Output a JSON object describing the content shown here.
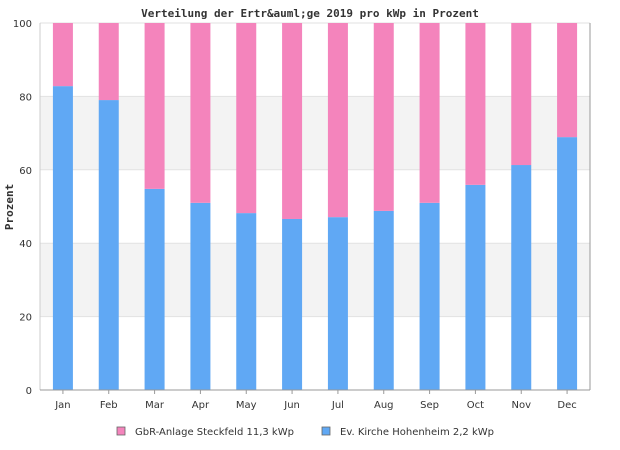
{
  "chart_data": {
    "type": "bar",
    "stacked": true,
    "title": "Verteilung der Ertr&auml;ge 2019 pro kWp in Prozent",
    "xlabel": "",
    "ylabel": "Prozent",
    "ylim": [
      0,
      100
    ],
    "yticks": [
      "0",
      "20",
      "40",
      "60",
      "80",
      "100"
    ],
    "grid": "horizontal alternating bands",
    "legend_position": "bottom",
    "categories": [
      "Jan",
      "Feb",
      "Mar",
      "Apr",
      "May",
      "Jun",
      "Jul",
      "Aug",
      "Sep",
      "Oct",
      "Nov",
      "Dec"
    ],
    "series": [
      {
        "name": "Ev. Kirche Hohenheim 2,2 kWp",
        "color": "#60a8f4",
        "values": [
          82.8,
          79.0,
          54.8,
          51.0,
          48.2,
          46.6,
          47.1,
          48.8,
          51.0,
          55.9,
          61.3,
          68.9
        ]
      },
      {
        "name": "GbR-Anlage Steckfeld 11,3 kWp",
        "color": "#f484bc",
        "values": [
          17.2,
          21.0,
          45.2,
          49.0,
          51.8,
          53.4,
          52.9,
          51.2,
          49.0,
          44.1,
          38.7,
          31.1
        ]
      }
    ],
    "legend_order": [
      "GbR-Anlage Steckfeld 11,3 kWp",
      "Ev. Kirche Hohenheim 2,2 kWp"
    ]
  }
}
